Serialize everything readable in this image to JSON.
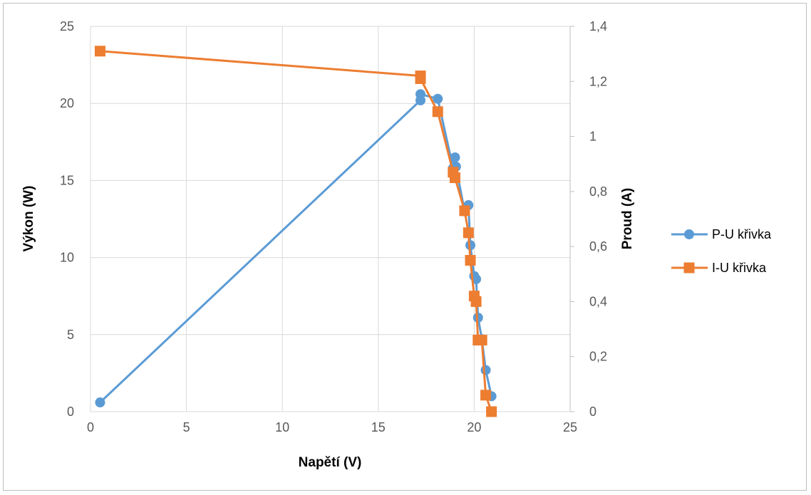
{
  "chart_data": {
    "type": "scatter",
    "xlabel": "Napětí (V)",
    "ylabel": "Výkon (W)",
    "y2label": "Proud (A)",
    "xlim": [
      0,
      25
    ],
    "ylim": [
      0,
      25
    ],
    "y2lim": [
      0,
      1.4
    ],
    "x_ticks": [
      "0",
      "5",
      "10",
      "15",
      "20",
      "25"
    ],
    "y_ticks": [
      "0",
      "5",
      "10",
      "15",
      "20",
      "25"
    ],
    "y2_ticks": [
      "0",
      "0,2",
      "0,4",
      "0,6",
      "0,8",
      "1",
      "1,2",
      "1,4"
    ],
    "grid": true,
    "legend_position": "right",
    "series": [
      {
        "name": "P-U křivka",
        "axis": "left",
        "color": "#5B9BD5",
        "marker": "circle",
        "x": [
          0.5,
          17.2,
          17.2,
          18.1,
          18.9,
          19.0,
          19.05,
          19.5,
          19.7,
          19.8,
          20.0,
          20.1,
          20.2,
          20.4,
          20.6,
          20.9
        ],
        "y": [
          0.6,
          20.2,
          20.6,
          20.3,
          15.8,
          16.5,
          15.9,
          13.0,
          13.4,
          10.8,
          8.8,
          8.6,
          6.1,
          4.7,
          2.7,
          1.0
        ]
      },
      {
        "name": "I-U křivka",
        "axis": "right",
        "color": "#ED7D31",
        "marker": "square",
        "x": [
          0.5,
          17.2,
          17.2,
          18.1,
          18.9,
          19.0,
          19.5,
          19.7,
          19.8,
          20.0,
          20.1,
          20.2,
          20.4,
          20.6,
          20.9
        ],
        "y": [
          1.31,
          1.22,
          1.21,
          1.09,
          0.87,
          0.85,
          0.73,
          0.65,
          0.55,
          0.42,
          0.4,
          0.26,
          0.26,
          0.06,
          0.0
        ]
      }
    ]
  }
}
